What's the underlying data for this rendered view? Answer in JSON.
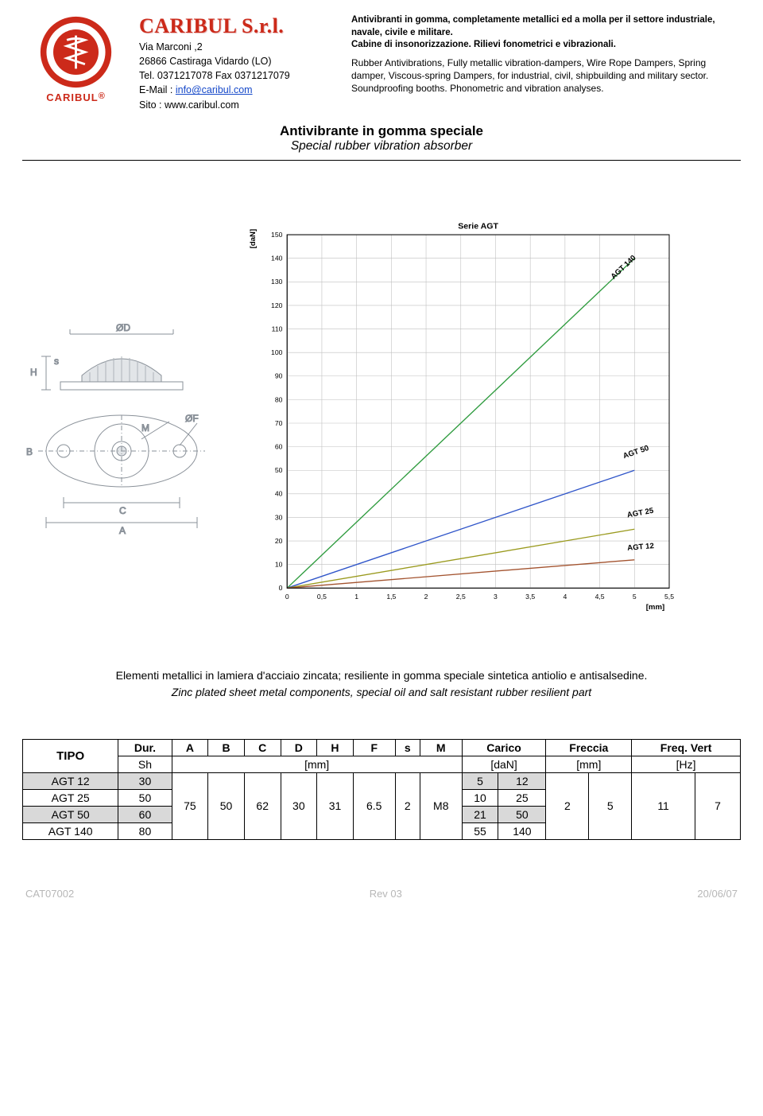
{
  "header": {
    "brandmark": "CARIBUL",
    "company_name": "CARIBUL S.r.l.",
    "address_l1": "Via Marconi ,2",
    "address_l2": "26866 Castiraga Vidardo (LO)",
    "address_l3": "Tel. 0371217078 Fax 0371217079",
    "email_label": "E-Mail : ",
    "email": "info@caribul.com",
    "site_label": "Sito :  ",
    "site": "www.caribul.com",
    "desc_it": "Antivibranti in gomma, completamente metallici ed a molla per il settore industriale, navale, civile e militare.",
    "desc_it2": "Cabine di insonorizzazione.      Rilievi fonometrici e vibrazionali.",
    "desc_en1": "Rubber Antivibrations, Fully metallic vibration-dampers, Wire Rope Dampers, Spring damper, Viscous-spring Dampers, for industrial, civil, shipbuilding and military sector.",
    "desc_en2": "Soundproofing booths.     Phonometric and vibration analyses."
  },
  "title": {
    "line1": "Antivibrante in gomma speciale",
    "line2": "Special rubber vibration absorber"
  },
  "diagram_labels": {
    "D": "ØD",
    "F": "ØF",
    "H": "H",
    "s": "s",
    "M": "M",
    "B": "B",
    "C": "C",
    "A": "A"
  },
  "chart": {
    "title": "Serie AGT",
    "x_unit": "[mm]",
    "y_unit": "[daN]",
    "x_ticks": [
      "0",
      "0,5",
      "1",
      "1,5",
      "2",
      "2,5",
      "3",
      "3,5",
      "4",
      "4,5",
      "5",
      "5,5"
    ],
    "y_ticks": [
      "0",
      "10",
      "20",
      "30",
      "40",
      "50",
      "60",
      "70",
      "80",
      "90",
      "100",
      "110",
      "120",
      "130",
      "140",
      "150"
    ],
    "xlim": [
      0,
      5.5
    ],
    "ylim": [
      0,
      150
    ],
    "series": [
      {
        "name": "AGT 140",
        "color": "#2e9b3e",
        "points": [
          [
            0,
            0
          ],
          [
            5,
            140
          ]
        ],
        "label_xy": [
          4.7,
          131
        ],
        "label_rot": -43
      },
      {
        "name": "AGT 50",
        "color": "#2f55c9",
        "points": [
          [
            0,
            0
          ],
          [
            5,
            50
          ]
        ],
        "label_xy": [
          4.85,
          55
        ],
        "label_rot": -19
      },
      {
        "name": "AGT 25",
        "color": "#9a9a1e",
        "points": [
          [
            0,
            0
          ],
          [
            5,
            25
          ]
        ],
        "label_xy": [
          4.9,
          30
        ],
        "label_rot": -10
      },
      {
        "name": "AGT 12",
        "color": "#a3532f",
        "points": [
          [
            0,
            0
          ],
          [
            5,
            12
          ]
        ],
        "label_xy": [
          4.9,
          16
        ],
        "label_rot": -5
      }
    ],
    "grid_color": "#bfbfbf",
    "axis_color": "#000000",
    "bg": "#ffffff",
    "line_width": 1.4,
    "label_fontsize": 10,
    "tick_fontsize": 9,
    "title_fontsize": 11
  },
  "descblock": {
    "it": "Elementi metallici in lamiera d'acciaio zincata; resiliente in gomma speciale sintetica antiolio e antisalsedine.",
    "en": "Zinc plated sheet metal components, special oil and salt resistant rubber resilient part"
  },
  "table": {
    "head1": [
      "TIPO",
      "Dur.",
      "A",
      "B",
      "C",
      "D",
      "H",
      "F",
      "s",
      "M",
      "Carico",
      "Freccia",
      "Freq. Vert"
    ],
    "head2_units": {
      "dur": "Sh",
      "dim": "[mm]",
      "carico": "[daN]",
      "freccia": "[mm]",
      "freq": "[Hz]"
    },
    "shared": {
      "A": "75",
      "B": "50",
      "C": "62",
      "D": "30",
      "H": "31",
      "F": "6.5",
      "s": "2",
      "M": "M8"
    },
    "freccia_pair": [
      "2",
      "5"
    ],
    "freq_pair": [
      "11",
      "7"
    ],
    "rows": [
      {
        "tipo": "AGT 12",
        "dur": "30",
        "carico_min": "5",
        "carico_max": "12",
        "shade": true
      },
      {
        "tipo": "AGT 25",
        "dur": "50",
        "carico_min": "10",
        "carico_max": "25",
        "shade": false
      },
      {
        "tipo": "AGT 50",
        "dur": "60",
        "carico_min": "21",
        "carico_max": "50",
        "shade": true
      },
      {
        "tipo": "AGT 140",
        "dur": "80",
        "carico_min": "55",
        "carico_max": "140",
        "shade": false
      }
    ]
  },
  "footer": {
    "left": "CAT07002",
    "center": "Rev 03",
    "right": "20/06/07"
  }
}
